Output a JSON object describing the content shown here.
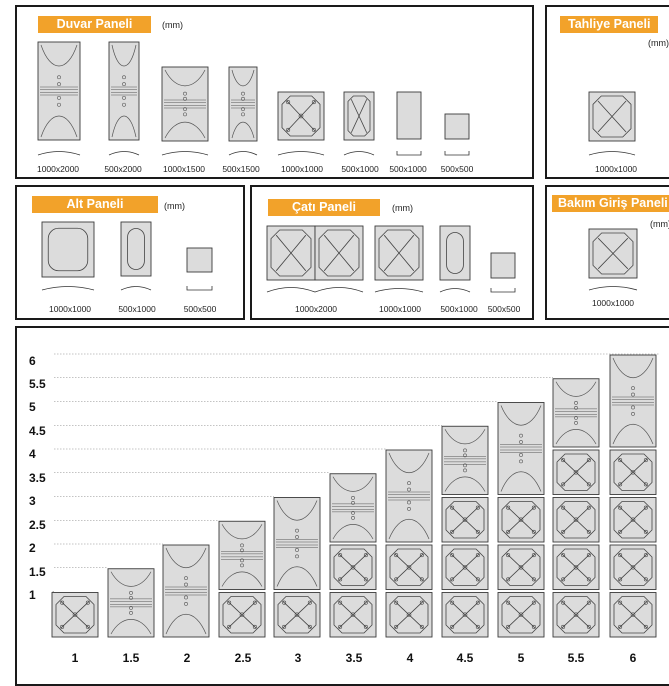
{
  "unit_label": "(mm)",
  "duvar": {
    "title": "Duvar Paneli",
    "sizes": [
      "1000x2000",
      "500x2000",
      "1000x1500",
      "500x1500",
      "1000x1000",
      "500x1000",
      "500x1000",
      "500x500"
    ]
  },
  "tahliye": {
    "title": "Tahliye Paneli",
    "sizes": [
      "1000x1000"
    ]
  },
  "alt": {
    "title": "Alt Paneli",
    "sizes": [
      "1000x1000",
      "500x1000",
      "500x500"
    ]
  },
  "cati": {
    "title": "Çatı Paneli",
    "sizes": [
      "1000x2000",
      "1000x1000",
      "500x1000",
      "500x500"
    ]
  },
  "bakim": {
    "title": "Bakım Giriş Paneli",
    "sizes": [
      "1000x1000"
    ]
  },
  "chart_data": {
    "type": "diagram",
    "y_ticks": [
      "6",
      "5.5",
      "5",
      "4.5",
      "4",
      "3.5",
      "3",
      "2.5",
      "2",
      "1.5",
      "1"
    ],
    "x_labels": [
      "1",
      "1.5",
      "2",
      "2.5",
      "3",
      "3.5",
      "4",
      "4.5",
      "5",
      "5.5",
      "6"
    ],
    "heights": [
      1,
      1.5,
      2,
      2.5,
      3,
      3.5,
      4,
      4.5,
      5,
      5.5,
      6
    ]
  }
}
